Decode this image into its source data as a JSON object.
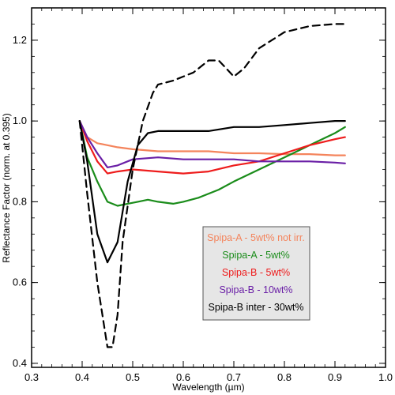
{
  "chart_data": {
    "type": "line",
    "xlabel": "Wavelength (µm)",
    "ylabel": "Reflectance Factor (norm. at 0.395)",
    "xlim": [
      0.3,
      1.0
    ],
    "ylim": [
      0.39,
      1.28
    ],
    "xticks": [
      0.3,
      0.4,
      0.5,
      0.6,
      0.7,
      0.8,
      0.9,
      1.0
    ],
    "xtick_labels": [
      "0.3",
      "0.4",
      "0.5",
      "0.6",
      "0.7",
      "0.8",
      "0.9",
      "1.0"
    ],
    "yticks": [
      0.4,
      0.6,
      0.8,
      1.0,
      1.2
    ],
    "ytick_labels": [
      "0.4",
      "0.6",
      "0.8",
      "1.0",
      "1.2"
    ],
    "grid": false,
    "legend_position": "lower-right",
    "series": [
      {
        "name": "Spipa-A - 5wt% not irr.",
        "color": "#f4845c",
        "dash": "solid",
        "x": [
          0.395,
          0.41,
          0.43,
          0.45,
          0.47,
          0.5,
          0.55,
          0.6,
          0.65,
          0.7,
          0.75,
          0.8,
          0.85,
          0.9,
          0.92
        ],
        "y": [
          1.0,
          0.96,
          0.945,
          0.94,
          0.935,
          0.93,
          0.925,
          0.925,
          0.925,
          0.92,
          0.92,
          0.918,
          0.918,
          0.915,
          0.915
        ]
      },
      {
        "name": "Spipa-A - 5wt%",
        "color": "#1a8c1a",
        "dash": "solid",
        "x": [
          0.395,
          0.41,
          0.43,
          0.45,
          0.47,
          0.49,
          0.51,
          0.53,
          0.55,
          0.58,
          0.6,
          0.63,
          0.67,
          0.7,
          0.75,
          0.8,
          0.85,
          0.9,
          0.92
        ],
        "y": [
          1.0,
          0.91,
          0.85,
          0.8,
          0.79,
          0.795,
          0.8,
          0.805,
          0.8,
          0.795,
          0.8,
          0.81,
          0.83,
          0.85,
          0.88,
          0.91,
          0.94,
          0.97,
          0.985
        ]
      },
      {
        "name": "Spipa-B - 5wt%",
        "color": "#ee1c1c",
        "dash": "solid",
        "x": [
          0.395,
          0.41,
          0.43,
          0.45,
          0.47,
          0.5,
          0.55,
          0.6,
          0.65,
          0.7,
          0.75,
          0.8,
          0.85,
          0.9,
          0.92
        ],
        "y": [
          1.0,
          0.95,
          0.9,
          0.87,
          0.875,
          0.88,
          0.875,
          0.87,
          0.875,
          0.89,
          0.9,
          0.92,
          0.94,
          0.955,
          0.96
        ]
      },
      {
        "name": "Spipa-B - 10wt%",
        "color": "#6a1fa6",
        "dash": "solid",
        "x": [
          0.395,
          0.41,
          0.43,
          0.45,
          0.47,
          0.5,
          0.55,
          0.6,
          0.65,
          0.7,
          0.75,
          0.8,
          0.85,
          0.9,
          0.92
        ],
        "y": [
          1.0,
          0.96,
          0.92,
          0.885,
          0.89,
          0.905,
          0.91,
          0.905,
          0.905,
          0.905,
          0.9,
          0.9,
          0.9,
          0.897,
          0.895
        ]
      },
      {
        "name": "Spipa-B inter - 30wt%",
        "color": "#000000",
        "dash": "solid",
        "x": [
          0.395,
          0.41,
          0.43,
          0.45,
          0.47,
          0.49,
          0.51,
          0.53,
          0.55,
          0.6,
          0.65,
          0.7,
          0.75,
          0.8,
          0.85,
          0.9,
          0.92
        ],
        "y": [
          1.0,
          0.9,
          0.72,
          0.65,
          0.7,
          0.85,
          0.94,
          0.97,
          0.975,
          0.975,
          0.975,
          0.985,
          0.985,
          0.99,
          0.995,
          1.0,
          1.0
        ]
      },
      {
        "name": "",
        "color": "#000000",
        "dash": "dashed",
        "x": [
          0.395,
          0.41,
          0.43,
          0.45,
          0.46,
          0.47,
          0.48,
          0.5,
          0.52,
          0.54,
          0.55,
          0.58,
          0.6,
          0.62,
          0.65,
          0.67,
          0.7,
          0.72,
          0.75,
          0.8,
          0.85,
          0.9,
          0.92
        ],
        "y": [
          1.0,
          0.82,
          0.6,
          0.44,
          0.44,
          0.52,
          0.7,
          0.88,
          1.0,
          1.07,
          1.09,
          1.1,
          1.11,
          1.12,
          1.15,
          1.15,
          1.11,
          1.13,
          1.18,
          1.22,
          1.235,
          1.24,
          1.24
        ]
      }
    ]
  }
}
